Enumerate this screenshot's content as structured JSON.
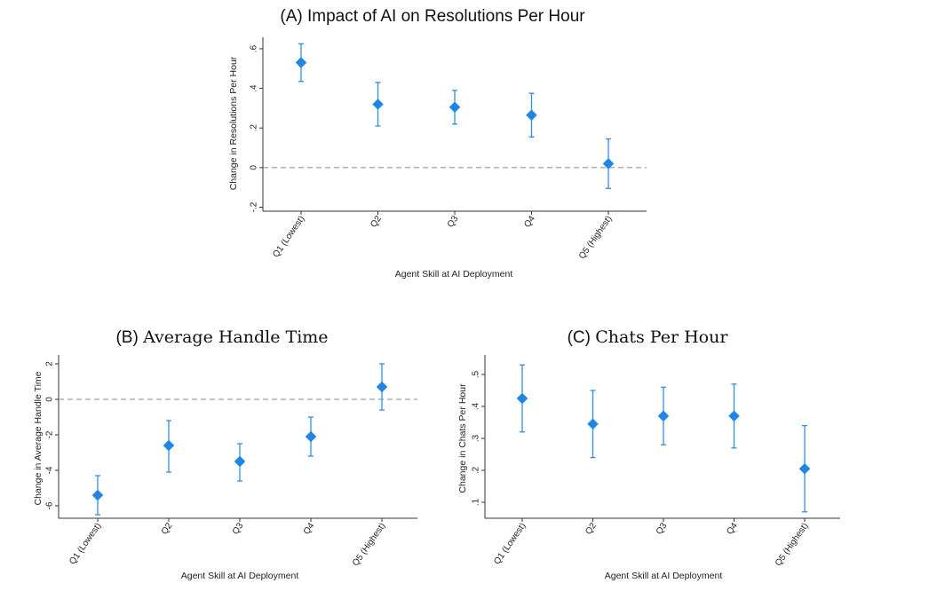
{
  "colors": {
    "marker": "#1f86e6",
    "error_bar": "#2f8ee0",
    "reference_line": "#888888",
    "axis": "#333333"
  },
  "chart_data": [
    {
      "id": "A",
      "type": "scatter",
      "marker": "diamond",
      "error_bars": true,
      "title": "(A) Impact of AI on Resolutions Per Hour",
      "title_parts": {
        "prefix": "",
        "text": "(A) Impact of AI on Resolutions Per Hour"
      },
      "xlabel": "Agent Skill at AI Deployment",
      "ylabel": "Change in Resolutions Per Hour",
      "categories": [
        "Q1 (Lowest)",
        "Q2",
        "Q3",
        "Q4",
        "Q5 (Highest)"
      ],
      "values": [
        0.53,
        0.32,
        0.305,
        0.265,
        0.02
      ],
      "ci_low": [
        0.435,
        0.21,
        0.22,
        0.155,
        -0.105
      ],
      "ci_high": [
        0.625,
        0.43,
        0.39,
        0.375,
        0.145
      ],
      "ylim": [
        -0.22,
        0.64
      ],
      "yticks": [
        -0.2,
        0,
        0.2,
        0.4,
        0.6
      ],
      "ytick_labels": [
        "-.2",
        "0",
        ".2",
        ".4",
        ".6"
      ],
      "reference_line": 0,
      "grid": false,
      "legend": "none"
    },
    {
      "id": "B",
      "type": "scatter",
      "marker": "diamond",
      "error_bars": true,
      "title": "(B) Average Handle Time",
      "title_parts": {
        "prefix": "(B)",
        "text": "Average Handle Time"
      },
      "xlabel": "Agent Skill at AI Deployment",
      "ylabel": "Change in Average Handle Time",
      "categories": [
        "Q1 (Lowest)",
        "Q2",
        "Q3",
        "Q4",
        "Q5 (Highest)"
      ],
      "values": [
        -5.4,
        -2.6,
        -3.5,
        -2.1,
        0.7
      ],
      "ci_low": [
        -6.5,
        -4.1,
        -4.6,
        -3.2,
        -0.6
      ],
      "ci_high": [
        -4.3,
        -1.2,
        -2.5,
        -1.0,
        2.0
      ],
      "ylim": [
        -6.7,
        2.3
      ],
      "yticks": [
        -6,
        -4,
        -2,
        0,
        2
      ],
      "ytick_labels": [
        "-6",
        "-4",
        "-2",
        "0",
        "2"
      ],
      "reference_line": 0,
      "grid": false,
      "legend": "none"
    },
    {
      "id": "C",
      "type": "scatter",
      "marker": "diamond",
      "error_bars": true,
      "title": "(C) Chats Per Hour",
      "title_parts": {
        "prefix": "(C)",
        "text": "Chats Per Hour"
      },
      "xlabel": "Agent Skill at AI Deployment",
      "ylabel": "Change in Chats Per Hour",
      "categories": [
        "Q1 (Lowest)",
        "Q2",
        "Q3",
        "Q4",
        "Q5 (Highest)"
      ],
      "values": [
        0.425,
        0.345,
        0.37,
        0.37,
        0.205
      ],
      "ci_low": [
        0.32,
        0.24,
        0.28,
        0.27,
        0.07
      ],
      "ci_high": [
        0.53,
        0.45,
        0.46,
        0.47,
        0.34
      ],
      "ylim": [
        0.05,
        0.55
      ],
      "yticks": [
        0.1,
        0.2,
        0.3,
        0.4,
        0.5
      ],
      "ytick_labels": [
        ".1",
        ".2",
        ".3",
        ".4",
        ".5"
      ],
      "reference_line": null,
      "grid": false,
      "legend": "none"
    }
  ]
}
